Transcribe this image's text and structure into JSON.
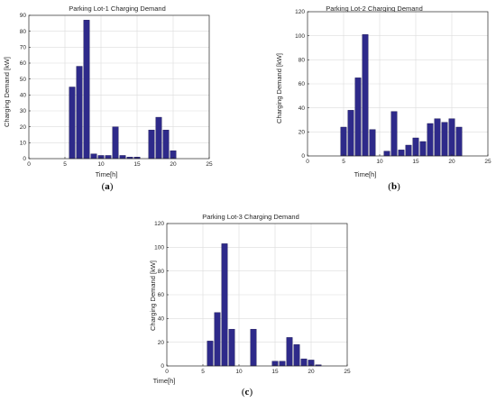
{
  "chart_data": [
    {
      "type": "bar",
      "title": "Parking Lot-1 Charging Demand",
      "xlabel": "Time[h]",
      "ylabel": "Charging Demand [kW]",
      "xlim": [
        0,
        25
      ],
      "ylim": [
        0,
        90
      ],
      "xticks": [
        0,
        5,
        10,
        15,
        20,
        25
      ],
      "yticks": [
        0,
        10,
        20,
        30,
        40,
        50,
        60,
        70,
        80,
        90
      ],
      "grid": true,
      "bar_color": "#2e2a8a",
      "x": [
        6,
        7,
        8,
        9,
        10,
        11,
        12,
        13,
        14,
        15,
        16,
        17,
        18,
        19,
        20
      ],
      "values": [
        45,
        58,
        87,
        3,
        2,
        2,
        20,
        2,
        1,
        1,
        0,
        18,
        26,
        18,
        5
      ],
      "caption": "a"
    },
    {
      "type": "bar",
      "title": "Parking Lot-2 Charging Demand",
      "xlabel": "Time[h]",
      "ylabel": "Charging Demand [kW]",
      "xlim": [
        0,
        25
      ],
      "ylim": [
        0,
        120
      ],
      "xticks": [
        0,
        5,
        10,
        15,
        20,
        25
      ],
      "yticks": [
        0,
        20,
        40,
        60,
        80,
        100,
        120
      ],
      "grid": true,
      "bar_color": "#2e2a8a",
      "x": [
        5,
        6,
        7,
        8,
        9,
        10,
        11,
        12,
        13,
        14,
        15,
        16,
        17,
        18,
        19,
        20,
        21
      ],
      "values": [
        24,
        38,
        65,
        101,
        22,
        0,
        4,
        37,
        5,
        9,
        15,
        12,
        27,
        31,
        28,
        31,
        24
      ],
      "caption": "b"
    },
    {
      "type": "bar",
      "title": "Parking Lot-3 Charging Demand",
      "xlabel": "Time[h]",
      "ylabel": "Charging Demand [kW]",
      "xlim": [
        0,
        25
      ],
      "ylim": [
        0,
        120
      ],
      "xticks": [
        0,
        5,
        10,
        15,
        20,
        25
      ],
      "yticks": [
        0,
        20,
        40,
        60,
        80,
        100,
        120
      ],
      "grid": true,
      "bar_color": "#2e2a8a",
      "x": [
        6,
        7,
        8,
        9,
        10,
        11,
        12,
        13,
        14,
        15,
        16,
        17,
        18,
        19,
        20,
        21
      ],
      "values": [
        21,
        45,
        103,
        31,
        0,
        0,
        31,
        0,
        0,
        4,
        4,
        24,
        18,
        6,
        5,
        1
      ],
      "caption": "c"
    }
  ]
}
